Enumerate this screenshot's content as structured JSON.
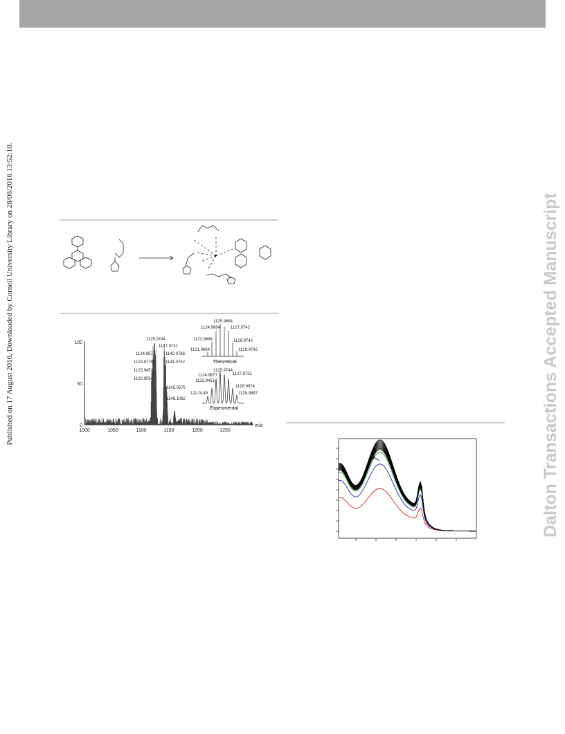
{
  "side_note": "Published on 17 August 2016. Downloaded by Cornell University Library on 28/08/2016 13:52:10.",
  "watermark": "Dalton Transactions Accepted Manuscript",
  "mass_spectrum": {
    "y_ticks": [
      100,
      50,
      0
    ],
    "x_ticks": [
      1000,
      1050,
      1100,
      1150,
      1200,
      1250
    ],
    "x_label": "m/z",
    "peak_labels": [
      "1125.9744",
      "1127.9731",
      "1124.9677",
      "1142.0786",
      "1123.9775",
      "1144.0752",
      "1123.9451",
      "1122.9554",
      "1145.0576",
      "1146.1062"
    ],
    "theoretical": {
      "labels": [
        "1125.9664",
        "1124.9664",
        "1127.9742",
        "1122.9664",
        "1128.9742",
        "1121.9684",
        "1129.9742"
      ],
      "caption": "Theoretical"
    },
    "experimental": {
      "labels": [
        "1125.9744",
        "1124.9677",
        "1127.9731",
        "1123.9451",
        "1128.9974",
        "122.0149",
        "1129.9897"
      ],
      "caption": "Experimental"
    }
  }
}
